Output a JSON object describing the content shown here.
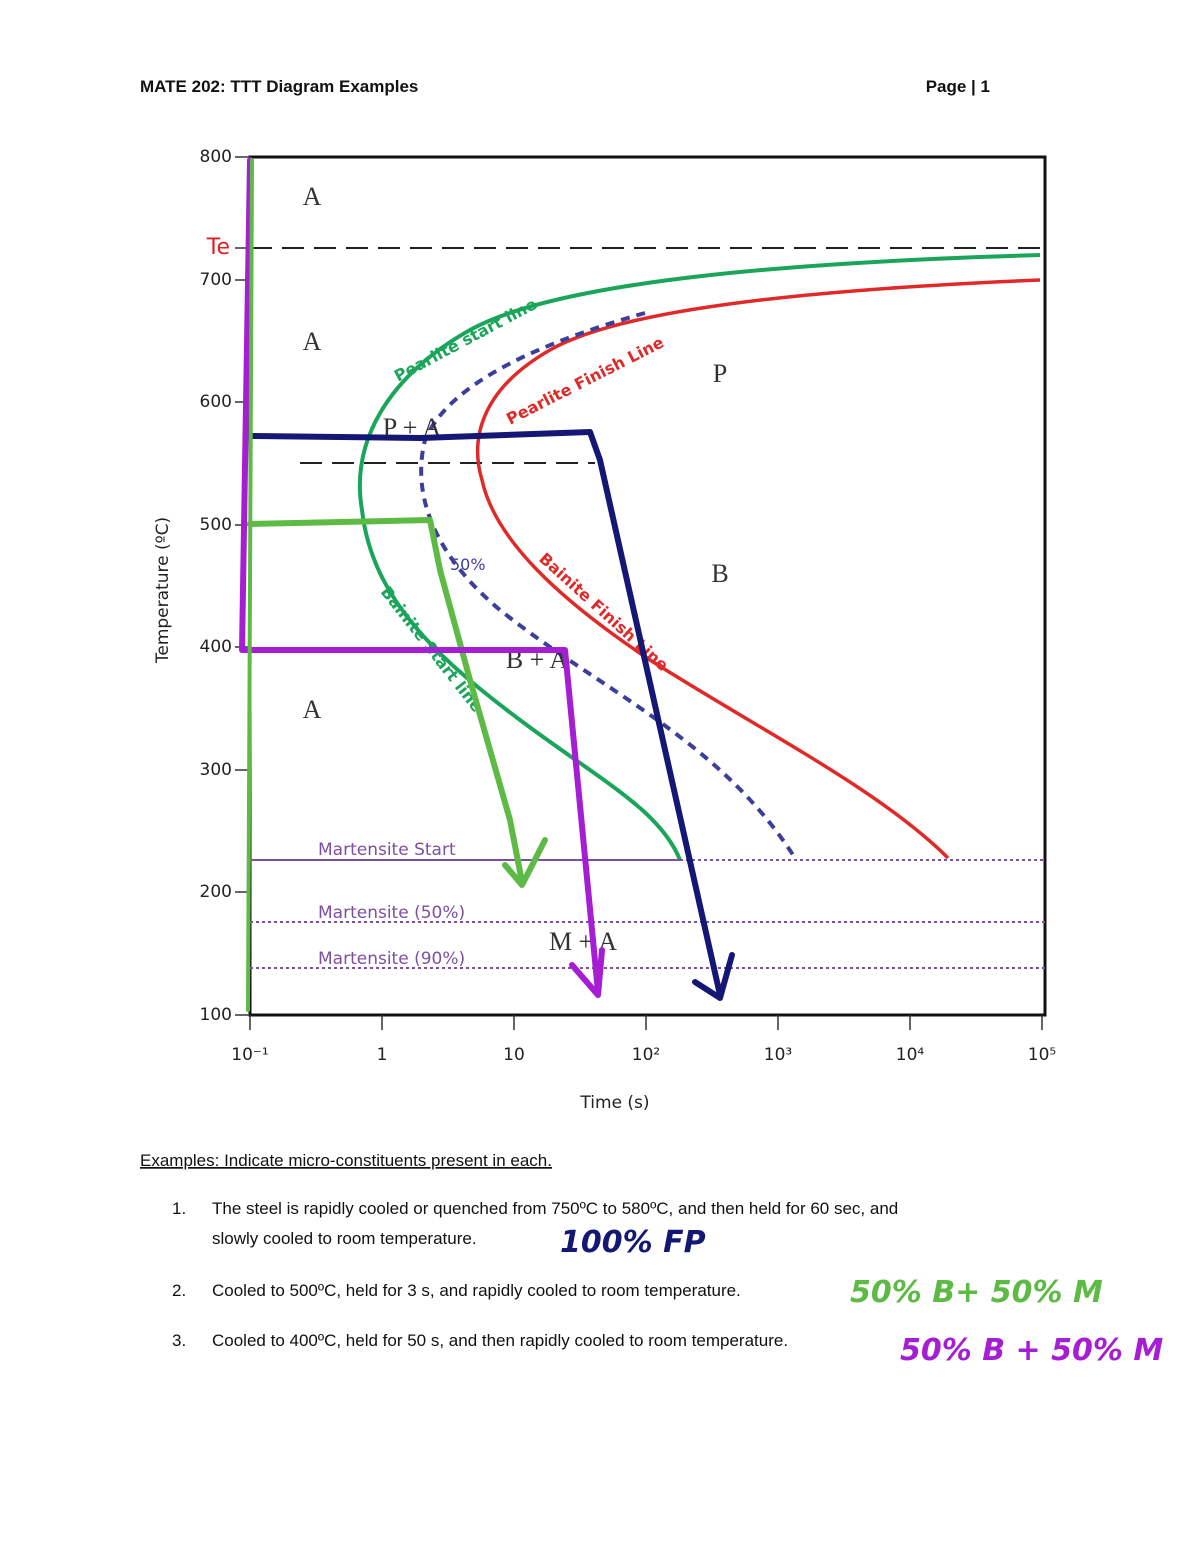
{
  "header": {
    "title": "MATE 202: TTT Diagram Examples",
    "page": "Page | 1"
  },
  "figure": {
    "y_axis_label": "Temperature (ºC)",
    "x_axis_label": "Time (s)",
    "te_label": "Te",
    "y_ticks": [
      "800",
      "700",
      "600",
      "500",
      "400",
      "300",
      "200",
      "100"
    ],
    "x_ticks": [
      "10⁻¹",
      "1",
      "10",
      "10²",
      "10³",
      "10⁴",
      "10⁵"
    ],
    "regions": [
      "A",
      "A",
      "A",
      "P",
      "B",
      "P + A",
      "B + A",
      "M + A"
    ],
    "curve_labels": [
      "Pearlite start line",
      "Pearlite Finish Line",
      "Bainite Start line",
      "Bainite Finish Line",
      "50%"
    ],
    "martensite_labels": [
      "Martensite Start",
      "Martensite (50%)",
      "Martensite (90%)"
    ]
  },
  "examples": {
    "heading": "Examples: Indicate micro-constituents present in each.",
    "items": [
      {
        "number": "1.",
        "text": [
          "The steel is rapidly cooled or quenched from 750ºC to 580ºC, and then held for 60 sec, and",
          "slowly cooled to room temperature."
        ],
        "answer": "100% FP"
      },
      {
        "number": "2.",
        "text": [
          "Cooled to 500ºC, held for 3 s, and rapidly cooled to room temperature."
        ],
        "answer": "50% B+ 50% M"
      },
      {
        "number": "3.",
        "text": [
          "Cooled to 400ºC, held for 50 s, and then rapidly cooled to room temperature."
        ],
        "answer": "50% B + 50% M"
      }
    ]
  }
}
